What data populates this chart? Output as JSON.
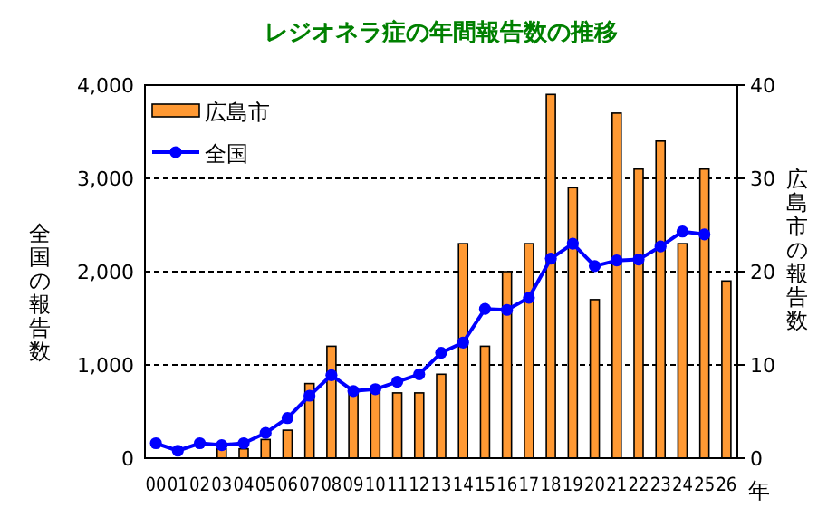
{
  "chart_data": {
    "type": "bar",
    "title": "レジオネラ症の年間報告数の推移",
    "xlabel": "年",
    "ylabel": "全国の報告数",
    "y2label": "広島市の報告数",
    "categories": [
      "00",
      "01",
      "02",
      "03",
      "04",
      "05",
      "06",
      "07",
      "08",
      "09",
      "10",
      "11",
      "12",
      "13",
      "14",
      "15",
      "16",
      "17",
      "18",
      "19",
      "20",
      "21",
      "22",
      "23",
      "24",
      "25",
      "26"
    ],
    "series": [
      {
        "name": "広島市",
        "axis": "y2",
        "color": "#ff9933",
        "values": [
          0,
          0,
          0,
          1,
          1,
          2,
          3,
          8,
          12,
          7,
          7,
          7,
          7,
          9,
          23,
          12,
          20,
          23,
          39,
          29,
          17,
          37,
          31,
          34,
          23,
          31,
          19
        ]
      },
      {
        "name": "全国",
        "type": "line",
        "axis": "y",
        "color": "#0000ff",
        "values": [
          160,
          80,
          160,
          140,
          160,
          270,
          430,
          670,
          890,
          720,
          740,
          820,
          900,
          1130,
          1240,
          1600,
          1590,
          1720,
          2140,
          2300,
          2060,
          2120,
          2130,
          2270,
          2430,
          2400,
          null
        ]
      }
    ],
    "ylim": [
      0,
      4000
    ],
    "yticks": [
      {
        "value": 0,
        "label": "0"
      },
      {
        "value": 1000,
        "label": "1,000"
      },
      {
        "value": 2000,
        "label": "2,000"
      },
      {
        "value": 3000,
        "label": "3,000"
      },
      {
        "value": 4000,
        "label": "4,000"
      }
    ],
    "y2lim": [
      0,
      40
    ],
    "y2ticks": [
      0,
      10,
      20,
      30,
      40
    ],
    "grid": "y",
    "legend": "top left",
    "marker": "circle",
    "line_style": "solid"
  }
}
